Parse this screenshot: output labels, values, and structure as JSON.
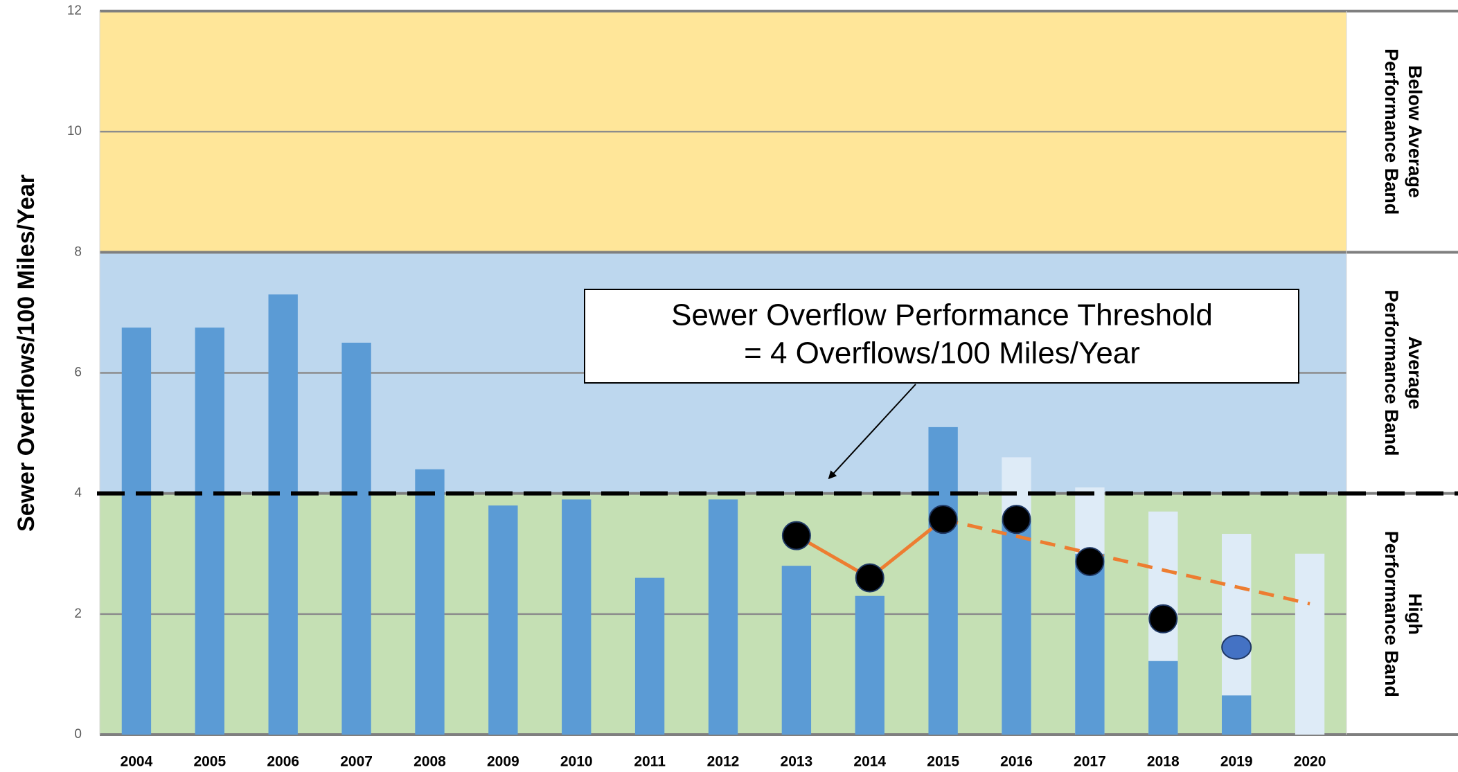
{
  "chart_data": {
    "type": "bar",
    "y_label": "Sewer Overflows/100 Miles/Year",
    "categories": [
      "2004",
      "2005",
      "2006",
      "2007",
      "2008",
      "2009",
      "2010",
      "2011",
      "2012",
      "2013",
      "2014",
      "2015",
      "2016",
      "2017",
      "2018",
      "2019",
      "2020"
    ],
    "ylim": [
      0,
      12
    ],
    "yticks": [
      0,
      2,
      4,
      6,
      8,
      10,
      12
    ],
    "grid": true,
    "bands": [
      {
        "from": 0,
        "to": 4,
        "color": "#c5e0b4",
        "label": [
          "High",
          "Performance Band"
        ]
      },
      {
        "from": 4,
        "to": 8,
        "color": "#bdd7ee",
        "label": [
          "Average",
          "Performance Band"
        ]
      },
      {
        "from": 8,
        "to": 12,
        "color": "#ffe699",
        "label": [
          "Below Average",
          "Performance Band"
        ]
      }
    ],
    "threshold": {
      "value": 4,
      "color": "#000000",
      "annotation": [
        "Sewer Overflow Performance Threshold",
        "= 4 Overflows/100 Miles/Year"
      ]
    },
    "series": [
      {
        "kind": "bar",
        "color": "#deebf7",
        "values": [
          null,
          null,
          null,
          null,
          null,
          null,
          null,
          null,
          null,
          null,
          null,
          null,
          4.6,
          4.1,
          3.7,
          3.33,
          3.0
        ]
      },
      {
        "kind": "bar",
        "color": "#5b9bd5",
        "values": [
          6.75,
          6.75,
          7.3,
          6.5,
          4.4,
          3.8,
          3.9,
          2.6,
          3.9,
          2.8,
          2.3,
          5.1,
          3.55,
          3.0,
          1.22,
          0.65,
          null
        ]
      },
      {
        "kind": "line",
        "color": "#ed7d31",
        "dashed": false,
        "values": [
          null,
          null,
          null,
          null,
          null,
          null,
          null,
          null,
          null,
          3.3,
          2.6,
          3.57,
          null,
          null,
          null,
          null,
          null
        ]
      },
      {
        "kind": "line",
        "color": "#ed7d31",
        "dashed": true,
        "values": [
          null,
          null,
          null,
          null,
          null,
          null,
          null,
          null,
          null,
          null,
          null,
          3.57,
          3.29,
          3.01,
          2.73,
          2.45,
          2.17
        ]
      },
      {
        "kind": "dot",
        "colors": [
          "#000000",
          "#000000",
          "#000000",
          "#000000",
          "#000000",
          "#000000",
          "#000000",
          "#000000",
          "#000000",
          "#000000",
          "#000000",
          "#000000",
          "#000000",
          "#000000",
          "#000000",
          "#4472c4",
          "#000000"
        ],
        "values": [
          null,
          null,
          null,
          null,
          null,
          null,
          null,
          null,
          null,
          3.3,
          2.6,
          3.57,
          3.57,
          2.87,
          1.92,
          1.45,
          null
        ]
      }
    ]
  }
}
